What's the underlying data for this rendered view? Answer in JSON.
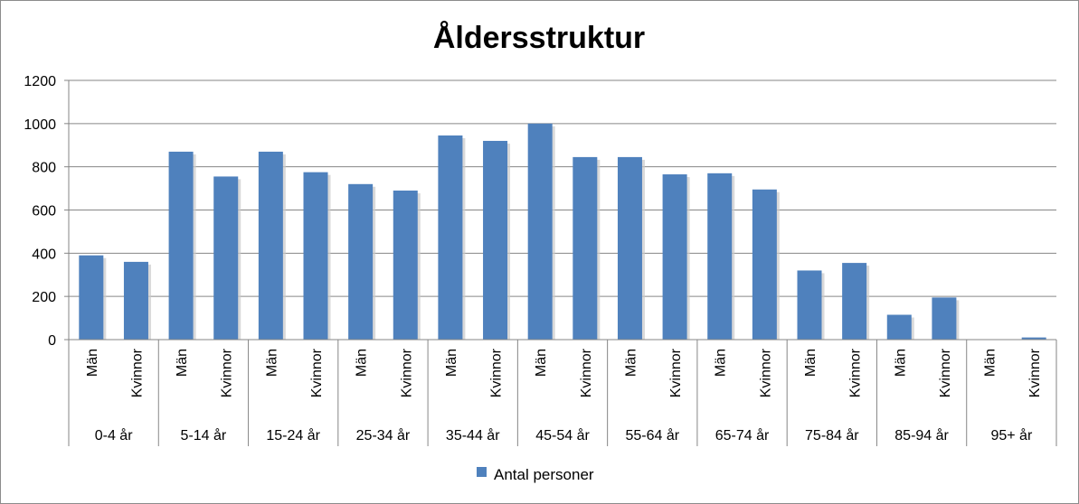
{
  "chart_data": {
    "type": "bar",
    "title": "Åldersstruktur",
    "xlabel": "",
    "ylabel": "",
    "ylim": [
      0,
      1200
    ],
    "yticks": [
      "0",
      "200",
      "400",
      "600",
      "800",
      "1000",
      "1200"
    ],
    "grid": true,
    "legend_position": "bottom",
    "groups": [
      "0-4 år",
      "5-14 år",
      "15-24 år",
      "25-34 år",
      "35-44 år",
      "45-54 år",
      "55-64 år",
      "65-74 år",
      "75-84 år",
      "85-94 år",
      "95+ år"
    ],
    "subcategories": [
      "Män",
      "Kvinnor"
    ],
    "categories": [
      "Män 0-4 år",
      "Kvinnor 0-4 år",
      "Män 5-14 år",
      "Kvinnor 5-14 år",
      "Män 15-24 år",
      "Kvinnor 15-24 år",
      "Män 25-34 år",
      "Kvinnor 25-34 år",
      "Män 35-44 år",
      "Kvinnor 35-44 år",
      "Män 45-54 år",
      "Kvinnor 45-54 år",
      "Män 55-64 år",
      "Kvinnor 55-64 år",
      "Män 65-74 år",
      "Kvinnor 65-74 år",
      "Män 75-84 år",
      "Kvinnor 75-84 år",
      "Män 85-94 år",
      "Kvinnor 85-94 år",
      "Män 95+ år",
      "Kvinnor 95+ år"
    ],
    "series": [
      {
        "name": "Antal personer",
        "color": "#4f81bd",
        "values": [
          390,
          360,
          870,
          755,
          870,
          775,
          720,
          690,
          945,
          920,
          1000,
          845,
          845,
          765,
          770,
          695,
          320,
          355,
          115,
          195,
          0,
          10
        ]
      }
    ]
  }
}
